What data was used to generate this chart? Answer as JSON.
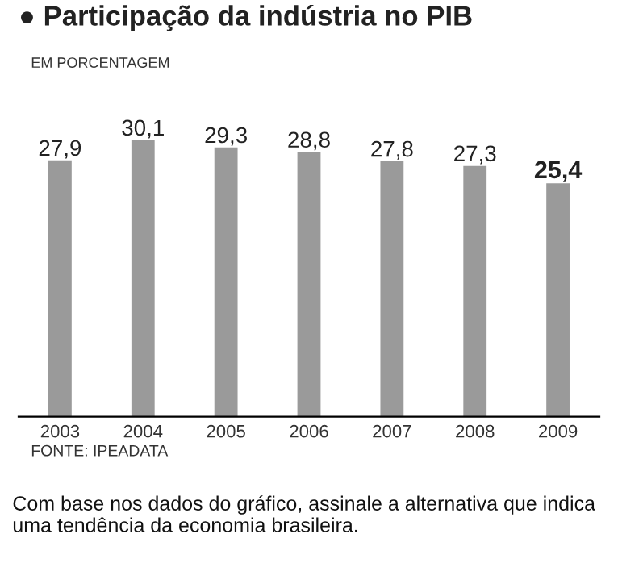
{
  "chart_data": {
    "type": "bar",
    "title": "● Participação da indústria no PIB",
    "subtitle": "EM PORCENTAGEM",
    "categories": [
      "2003",
      "2004",
      "2005",
      "2006",
      "2007",
      "2008",
      "2009"
    ],
    "values": [
      27.9,
      30.1,
      29.3,
      28.8,
      27.8,
      27.3,
      25.4
    ],
    "color": "#9a9a9a",
    "value_labels": [
      "27,9",
      "30,1",
      "29,3",
      "28,8",
      "27,8",
      "27,3",
      "25,4"
    ],
    "grid": false,
    "annotations": [
      "FONTE: IPEADATA",
      "Com base nos dados do gráfico, assinale a alternativa que indica uma tendência da economia brasileira."
    ]
  }
}
